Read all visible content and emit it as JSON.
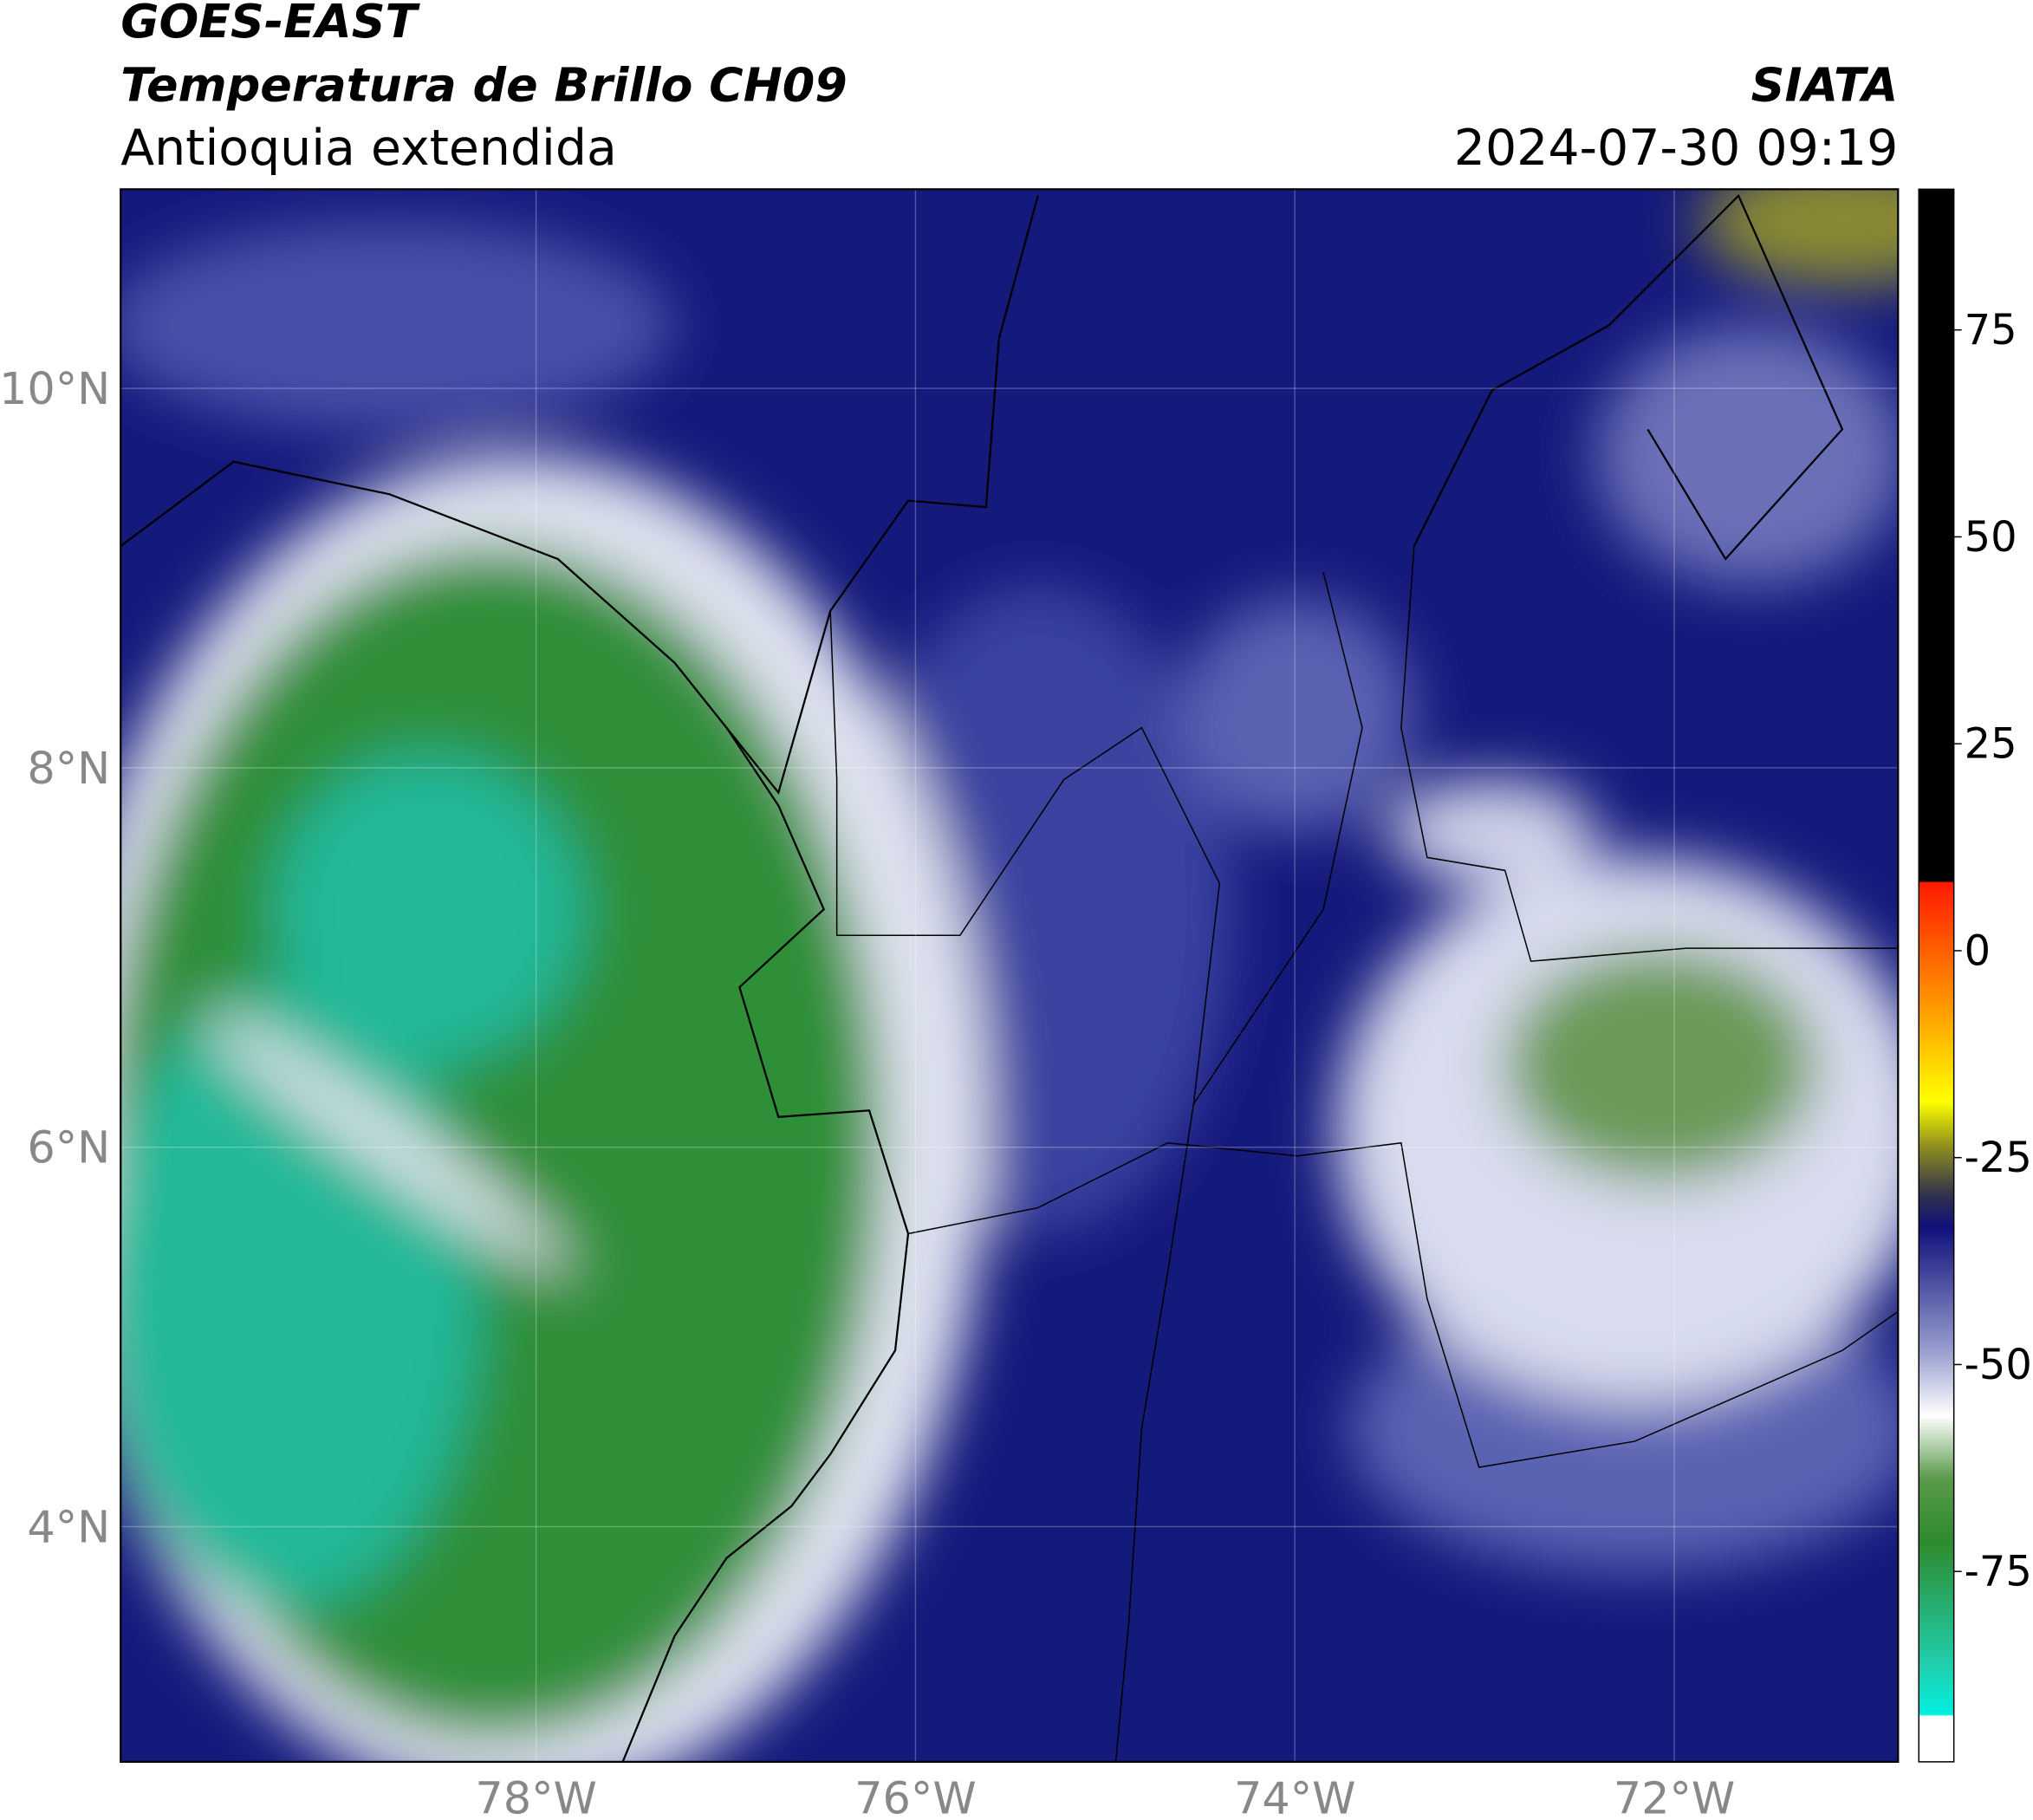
{
  "header": {
    "title_line1": "GOES-EAST",
    "title_line2": "Temperatura de Brillo CH09",
    "subtitle": "Antioquia extendida",
    "agency": "SIATA",
    "datetime": "2024-07-30 09:19"
  },
  "map": {
    "xlim": [
      -80.19,
      -70.82
    ],
    "ylim": [
      2.76,
      11.05
    ],
    "xticks": [
      {
        "value": -78,
        "label": "78°W"
      },
      {
        "value": -76,
        "label": "76°W"
      },
      {
        "value": -74,
        "label": "74°W"
      },
      {
        "value": -72,
        "label": "72°W"
      }
    ],
    "yticks": [
      {
        "value": 10,
        "label": "10°N"
      },
      {
        "value": 8,
        "label": "8°N"
      },
      {
        "value": 6,
        "label": "6°N"
      },
      {
        "value": 4,
        "label": "4°N"
      }
    ],
    "grid": true
  },
  "colorbar": {
    "lim": [
      -98,
      92
    ],
    "ticks": [
      75,
      50,
      25,
      0,
      -25,
      -50,
      -75
    ]
  }
}
